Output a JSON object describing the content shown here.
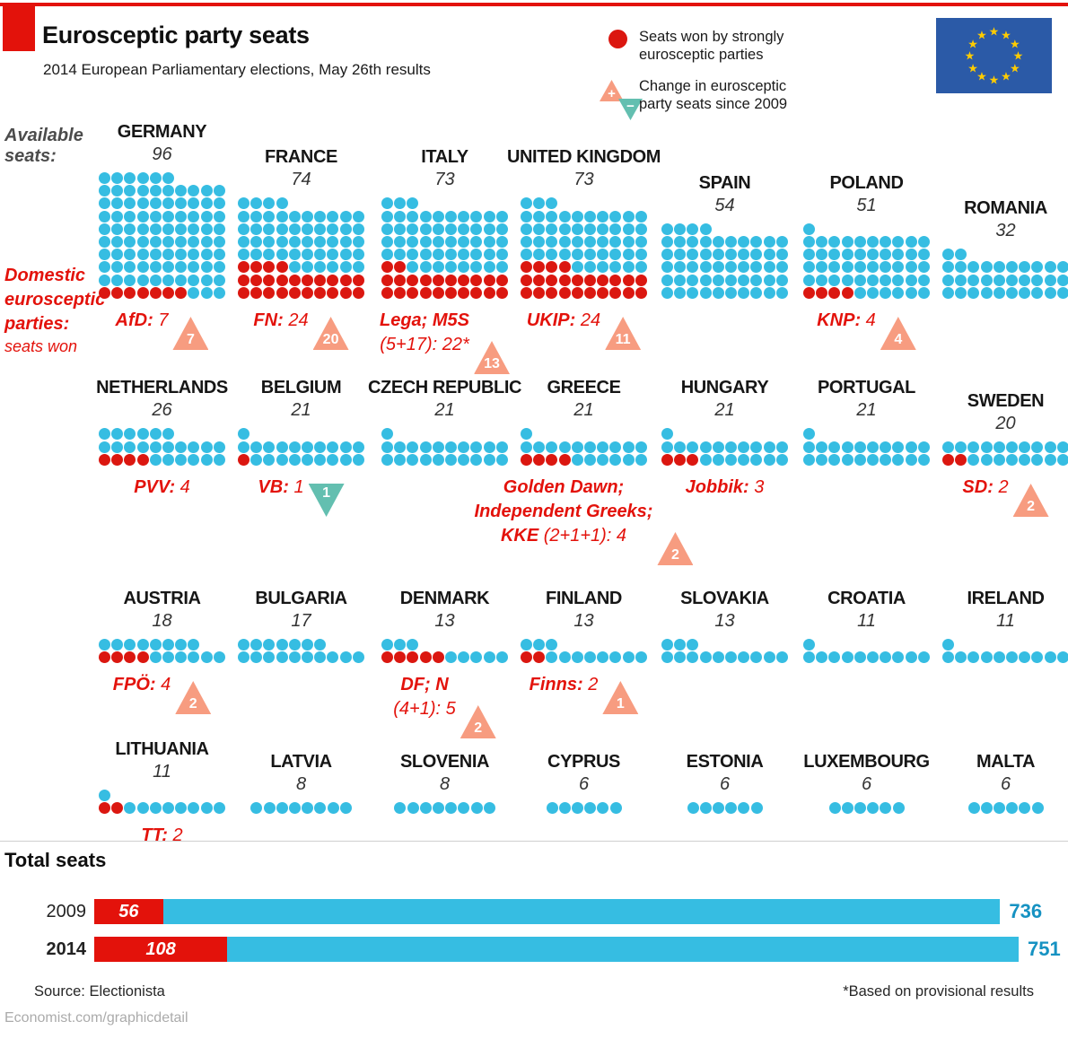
{
  "header": {
    "title": "Eurosceptic party seats",
    "subtitle": "2014 European Parliamentary elections, May 26th results"
  },
  "legend": {
    "seats": [
      "Seats won by strongly",
      "eurosceptic parties"
    ],
    "change": [
      "Change in eurosceptic",
      "party seats since 2009"
    ],
    "plus": "+",
    "minus": "−"
  },
  "side_labels": {
    "available": [
      "Available",
      "seats:"
    ],
    "domestic": [
      "Domestic",
      "eurosceptic",
      "parties:"
    ],
    "seats_won": "seats won"
  },
  "colors": {
    "red": "#E3120B",
    "dot_red": "#DB1710",
    "blue": "#36BDE2",
    "salmon": "#F79C80",
    "teal": "#63BFB0",
    "value_blue": "#1692C2",
    "flag_blue": "#2B5AA7",
    "star_yellow": "#FFCC00"
  },
  "flag": {
    "stars": 12
  },
  "chart_data": {
    "type": "pictogram",
    "unit": "seats",
    "dots_per_row": 10,
    "countries": [
      {
        "name": "GERMANY",
        "seats": 96,
        "eurosceptic": 7,
        "party": [
          {
            "name": "AfD:",
            "value": "7"
          }
        ],
        "change": 7,
        "direction": "up",
        "row": 0,
        "col": 0
      },
      {
        "name": "FRANCE",
        "seats": 74,
        "eurosceptic": 24,
        "party": [
          {
            "name": "FN:",
            "value": "24"
          }
        ],
        "change": 20,
        "direction": "up",
        "row": 0,
        "col": 1
      },
      {
        "name": "ITALY",
        "seats": 73,
        "eurosceptic": 22,
        "party": [
          {
            "name": "Lega; M5S",
            "value": ""
          },
          {
            "name": "",
            "value": "(5+17): 22*"
          }
        ],
        "change": 13,
        "direction": "up",
        "row": 0,
        "col": 2
      },
      {
        "name": "UNITED KINGDOM",
        "seats": 73,
        "eurosceptic": 24,
        "party": [
          {
            "name": "UKIP:",
            "value": "24"
          }
        ],
        "change": 11,
        "direction": "up",
        "row": 0,
        "col": 3
      },
      {
        "name": "SPAIN",
        "seats": 54,
        "eurosceptic": 0,
        "party": null,
        "change": null,
        "direction": null,
        "row": 0,
        "col": 4
      },
      {
        "name": "POLAND",
        "seats": 51,
        "eurosceptic": 4,
        "party": [
          {
            "name": "KNP:",
            "value": "4"
          }
        ],
        "change": 4,
        "direction": "up",
        "row": 0,
        "col": 5
      },
      {
        "name": "ROMANIA",
        "seats": 32,
        "eurosceptic": 0,
        "party": null,
        "change": null,
        "direction": null,
        "row": 0,
        "col": 6
      },
      {
        "name": "NETHERLANDS",
        "seats": 26,
        "eurosceptic": 4,
        "party": [
          {
            "name": "PVV:",
            "value": "4"
          }
        ],
        "change": null,
        "direction": null,
        "row": 1,
        "col": 0
      },
      {
        "name": "BELGIUM",
        "seats": 21,
        "eurosceptic": 1,
        "party": [
          {
            "name": "VB:",
            "value": "1"
          }
        ],
        "change": 1,
        "direction": "down",
        "row": 1,
        "col": 1
      },
      {
        "name": "CZECH REPUBLIC",
        "seats": 21,
        "eurosceptic": 0,
        "party": null,
        "change": null,
        "direction": null,
        "row": 1,
        "col": 2
      },
      {
        "name": "GREECE",
        "seats": 21,
        "eurosceptic": 4,
        "party": [
          {
            "name": "Golden Dawn;",
            "value": ""
          },
          {
            "name": "Independent Greeks;",
            "value": ""
          },
          {
            "name": "KKE",
            "value": "(2+1+1): 4"
          }
        ],
        "change": 2,
        "direction": "up",
        "row": 1,
        "col": 3
      },
      {
        "name": "HUNGARY",
        "seats": 21,
        "eurosceptic": 3,
        "party": [
          {
            "name": "Jobbik:",
            "value": "3"
          }
        ],
        "change": null,
        "direction": null,
        "row": 1,
        "col": 4
      },
      {
        "name": "PORTUGAL",
        "seats": 21,
        "eurosceptic": 0,
        "party": null,
        "change": null,
        "direction": null,
        "row": 1,
        "col": 5
      },
      {
        "name": "SWEDEN",
        "seats": 20,
        "eurosceptic": 2,
        "party": [
          {
            "name": "SD:",
            "value": "2"
          }
        ],
        "change": 2,
        "direction": "up",
        "row": 1,
        "col": 6
      },
      {
        "name": "AUSTRIA",
        "seats": 18,
        "eurosceptic": 4,
        "party": [
          {
            "name": "FPÖ:",
            "value": "4"
          }
        ],
        "change": 2,
        "direction": "up",
        "row": 2,
        "col": 0
      },
      {
        "name": "BULGARIA",
        "seats": 17,
        "eurosceptic": 0,
        "party": null,
        "change": null,
        "direction": null,
        "row": 2,
        "col": 1
      },
      {
        "name": "DENMARK",
        "seats": 13,
        "eurosceptic": 5,
        "party": [
          {
            "name": "DF; N",
            "value": ""
          },
          {
            "name": "",
            "value": "(4+1): 5"
          }
        ],
        "change": 2,
        "direction": "up",
        "row": 2,
        "col": 2
      },
      {
        "name": "FINLAND",
        "seats": 13,
        "eurosceptic": 2,
        "party": [
          {
            "name": "Finns:",
            "value": "2"
          }
        ],
        "change": 1,
        "direction": "up",
        "row": 2,
        "col": 3
      },
      {
        "name": "SLOVAKIA",
        "seats": 13,
        "eurosceptic": 0,
        "party": null,
        "change": null,
        "direction": null,
        "row": 2,
        "col": 4
      },
      {
        "name": "CROATIA",
        "seats": 11,
        "eurosceptic": 0,
        "party": null,
        "change": null,
        "direction": null,
        "row": 2,
        "col": 5
      },
      {
        "name": "IRELAND",
        "seats": 11,
        "eurosceptic": 0,
        "party": null,
        "change": null,
        "direction": null,
        "row": 2,
        "col": 6
      },
      {
        "name": "LITHUANIA",
        "seats": 11,
        "eurosceptic": 2,
        "party": [
          {
            "name": "TT:",
            "value": "2"
          }
        ],
        "change": null,
        "direction": null,
        "row": 3,
        "col": 0
      },
      {
        "name": "LATVIA",
        "seats": 8,
        "eurosceptic": 0,
        "party": null,
        "change": null,
        "direction": null,
        "row": 3,
        "col": 1
      },
      {
        "name": "SLOVENIA",
        "seats": 8,
        "eurosceptic": 0,
        "party": null,
        "change": null,
        "direction": null,
        "row": 3,
        "col": 2
      },
      {
        "name": "CYPRUS",
        "seats": 6,
        "eurosceptic": 0,
        "party": null,
        "change": null,
        "direction": null,
        "row": 3,
        "col": 3
      },
      {
        "name": "ESTONIA",
        "seats": 6,
        "eurosceptic": 0,
        "party": null,
        "change": null,
        "direction": null,
        "row": 3,
        "col": 4
      },
      {
        "name": "LUXEMBOURG",
        "seats": 6,
        "eurosceptic": 0,
        "party": null,
        "change": null,
        "direction": null,
        "row": 3,
        "col": 5
      },
      {
        "name": "MALTA",
        "seats": 6,
        "eurosceptic": 0,
        "party": null,
        "change": null,
        "direction": null,
        "row": 3,
        "col": 6
      }
    ],
    "totals": {
      "title": "Total seats",
      "type": "stacked_bar",
      "bars": [
        {
          "year": "2009",
          "eurosceptic": 56,
          "total": 736
        },
        {
          "year": "2014",
          "eurosceptic": 108,
          "total": 751
        }
      ]
    }
  },
  "footer": {
    "source": "Source: Electionista",
    "note": "*Based on provisional results",
    "url": "Economist.com/graphicdetail"
  }
}
